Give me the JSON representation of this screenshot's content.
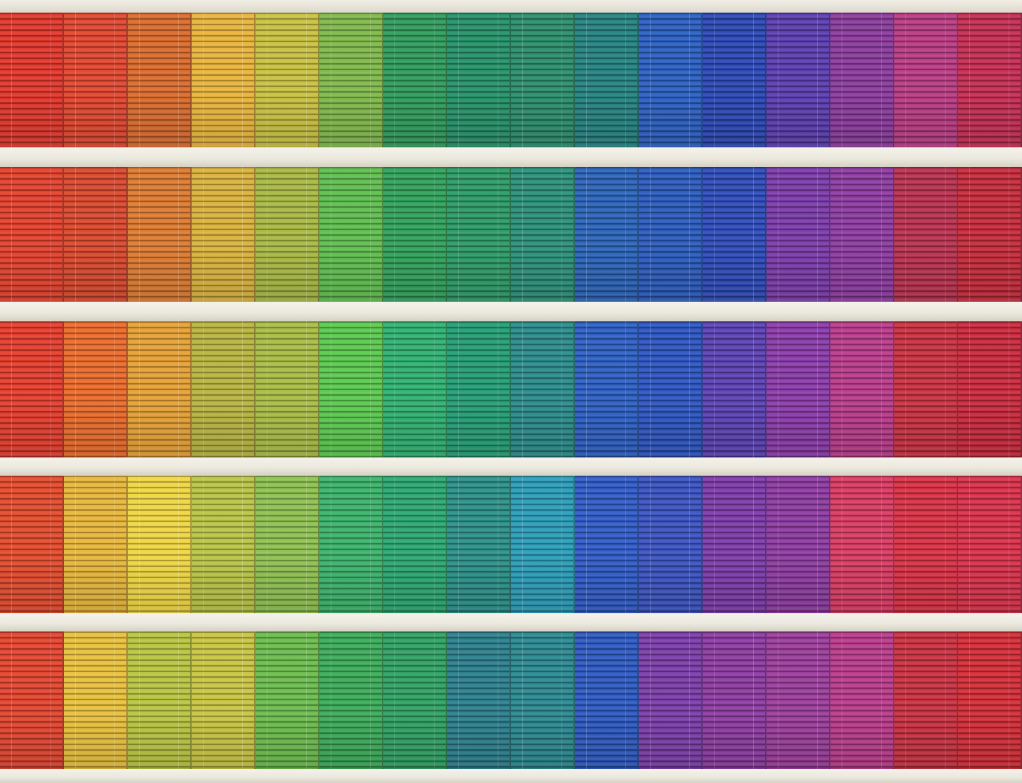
{
  "photo": {
    "subject": "",
    "floors": [
      {
        "colors": [
          "#e0352a",
          "#e0452e",
          "#d96a2c",
          "#e8b43a",
          "#c8c040",
          "#7fb84a",
          "#2e9a5a",
          "#249068",
          "#2a8c6a",
          "#23817f",
          "#2a5ec0",
          "#2a46b4",
          "#5a3cae",
          "#8a3a9c",
          "#b83a82",
          "#c32c52"
        ]
      },
      {
        "colors": [
          "#e2402c",
          "#d8472c",
          "#dc7a30",
          "#d9b23c",
          "#a8b842",
          "#5ebd4e",
          "#2fa05a",
          "#2b9966",
          "#2a8f78",
          "#2a62b8",
          "#2a5abc",
          "#2d4ab8",
          "#7a3aa8",
          "#8c3aa0",
          "#b8304e",
          "#c42a3a"
        ]
      },
      {
        "colors": [
          "#e43c2c",
          "#ea6a2a",
          "#e5a034",
          "#b8b440",
          "#a8bc44",
          "#5ac84e",
          "#2eb070",
          "#239c74",
          "#2a8a8a",
          "#2c5ec2",
          "#2c54c0",
          "#5a40b2",
          "#8a3aa8",
          "#b83a8a",
          "#c83040",
          "#c8283c"
        ]
      },
      {
        "colors": [
          "#e24a2c",
          "#e7b63a",
          "#efd642",
          "#b8c445",
          "#8ec050",
          "#3ab26a",
          "#2aa670",
          "#2a8f88",
          "#2a9cb8",
          "#2f5ac6",
          "#3a52c0",
          "#7c3aa8",
          "#8c3aa0",
          "#d83a62",
          "#d83044",
          "#d8304a"
        ]
      },
      {
        "colors": [
          "#e2442e",
          "#e8c03c",
          "#b8c440",
          "#c8c442",
          "#6abb4c",
          "#3aaa58",
          "#2ea062",
          "#2a7e8c",
          "#2a8890",
          "#2c58c0",
          "#7a3ca8",
          "#8c3aa0",
          "#9a3c9a",
          "#b83a8a",
          "#c83040",
          "#d22c36"
        ]
      }
    ]
  }
}
